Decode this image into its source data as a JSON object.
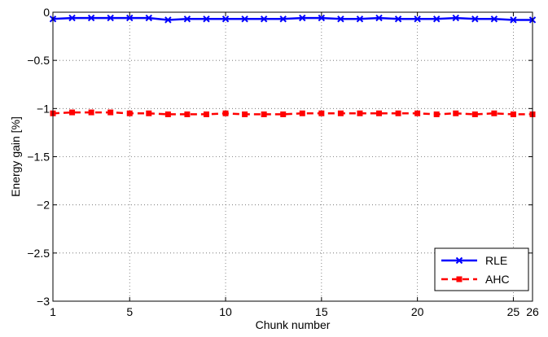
{
  "chart_data": {
    "type": "line",
    "xlabel": "Chunk number",
    "ylabel": "Energy gain [%]",
    "xlim": [
      1,
      26
    ],
    "ylim": [
      -3,
      0
    ],
    "xticks": [
      1,
      5,
      10,
      15,
      20,
      25,
      26
    ],
    "xtick_labels": [
      "1",
      "5",
      "10",
      "15",
      "20",
      "25",
      "26"
    ],
    "yticks": [
      0,
      -0.5,
      -1,
      -1.5,
      -2,
      -2.5,
      -3
    ],
    "ytick_labels": [
      "0",
      "−0.5",
      "−1",
      "−1.5",
      "−2",
      "−2.5",
      "−3"
    ],
    "grid": true,
    "legend_position": "bottom-right",
    "x": [
      1,
      2,
      3,
      4,
      5,
      6,
      7,
      8,
      9,
      10,
      11,
      12,
      13,
      14,
      15,
      16,
      17,
      18,
      19,
      20,
      21,
      22,
      23,
      24,
      25,
      26
    ],
    "series": [
      {
        "name": "RLE",
        "color": "#0000ff",
        "line_style": "solid",
        "marker": "x",
        "values": [
          -0.07,
          -0.06,
          -0.06,
          -0.06,
          -0.06,
          -0.06,
          -0.08,
          -0.07,
          -0.07,
          -0.07,
          -0.07,
          -0.07,
          -0.07,
          -0.06,
          -0.06,
          -0.07,
          -0.07,
          -0.06,
          -0.07,
          -0.07,
          -0.07,
          -0.06,
          -0.07,
          -0.07,
          -0.08,
          -0.08
        ]
      },
      {
        "name": "AHC",
        "color": "#ff0000",
        "line_style": "dashed",
        "marker": "square",
        "values": [
          -1.05,
          -1.04,
          -1.04,
          -1.04,
          -1.05,
          -1.05,
          -1.06,
          -1.06,
          -1.06,
          -1.05,
          -1.06,
          -1.06,
          -1.06,
          -1.05,
          -1.05,
          -1.05,
          -1.05,
          -1.05,
          -1.05,
          -1.05,
          -1.06,
          -1.05,
          -1.06,
          -1.05,
          -1.06,
          -1.06
        ]
      }
    ]
  }
}
